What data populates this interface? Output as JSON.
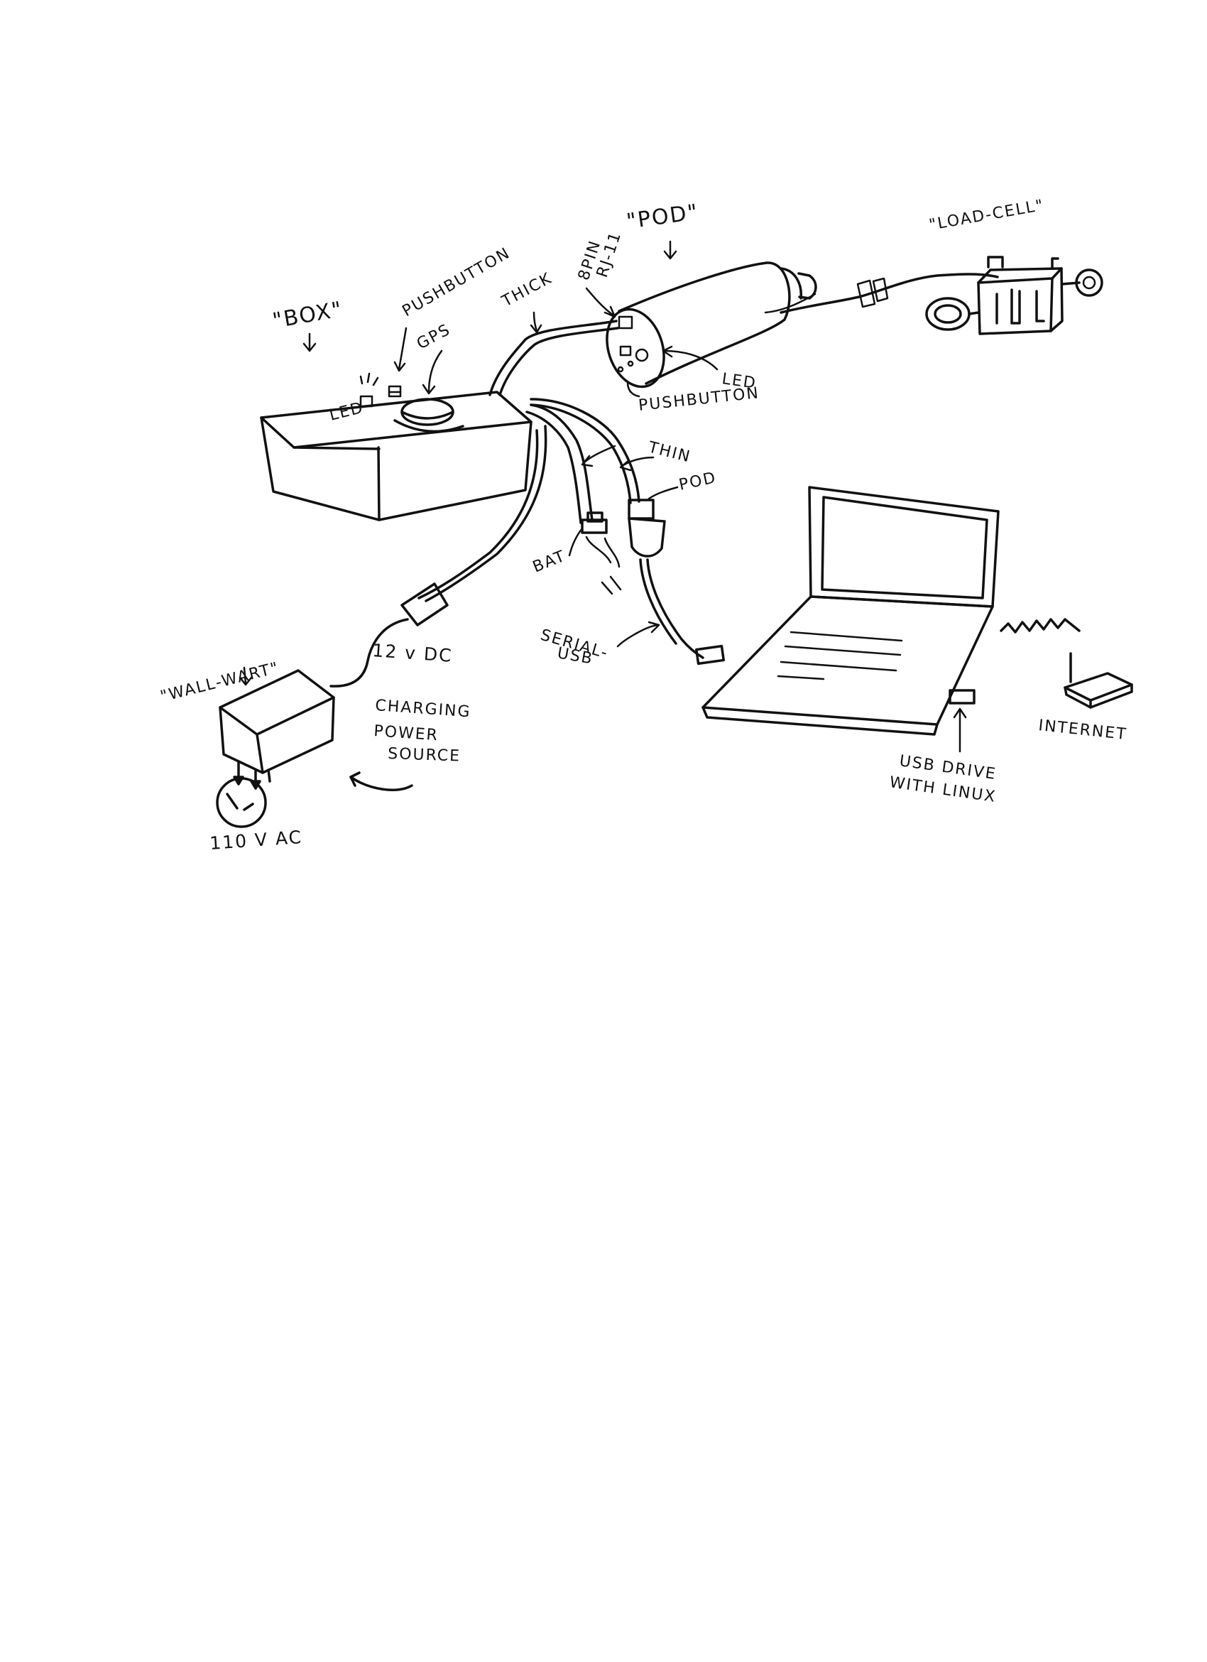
{
  "colors": {
    "ink": "#111111",
    "paper": "#ffffff"
  },
  "labels": {
    "box": "\"BOX\"",
    "pushbutton_top": "PUSHBUTTON",
    "gps": "GPS",
    "led_box": "LED",
    "thick": "THICK",
    "connector_8pin": "8PIN",
    "connector_rj11": "RJ-11",
    "pod_title": "\"POD\"",
    "load_cell": "\"LOAD-CELL\"",
    "led_pod": "LED",
    "pushbutton_pod": "PUSHBUTTON",
    "thin": "THIN",
    "pod_plug": "POD",
    "bat": "BAT",
    "serial_usb_1": "SERIAL-",
    "serial_usb_2": "USB",
    "volt_dc": "12 v DC",
    "wall_wart": "\"WALL-WART\"",
    "charging_1": "CHARGING",
    "charging_2": "POWER",
    "charging_3": "SOURCE",
    "ac": "110 V AC",
    "internet": "INTERNET",
    "usb_drive_1": "USB DRIVE",
    "usb_drive_2": "WITH LINUX"
  }
}
